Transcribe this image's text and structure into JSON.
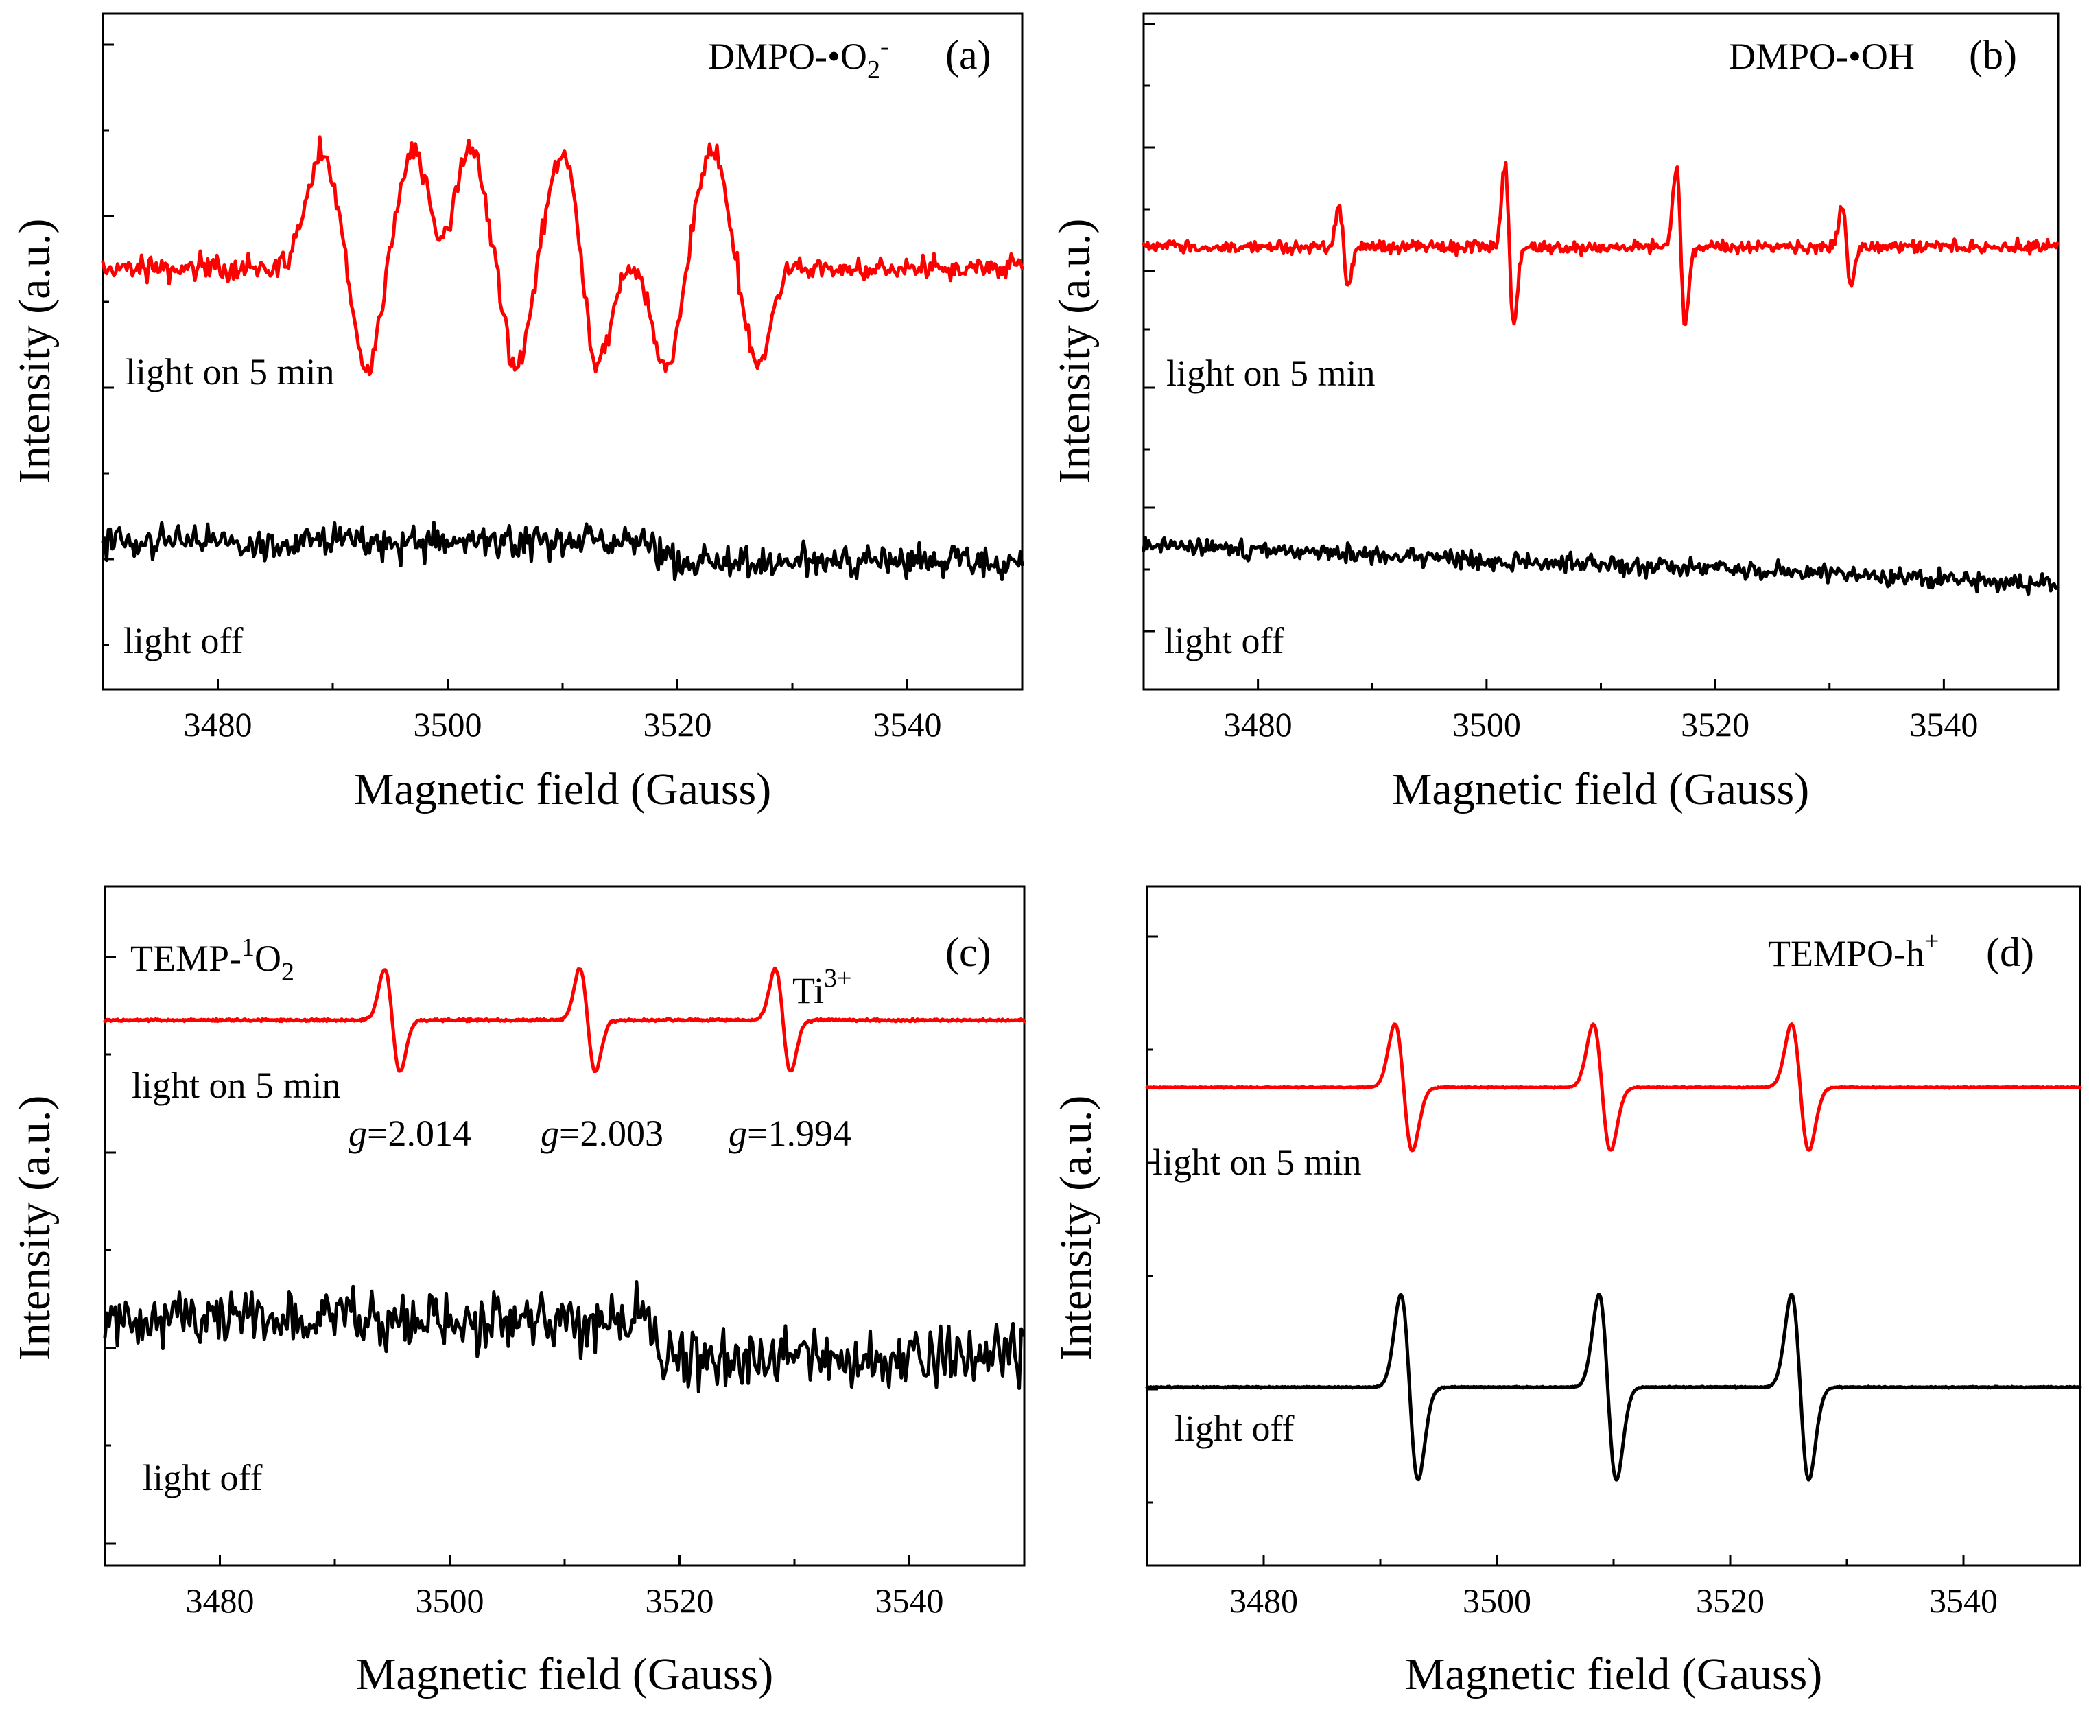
{
  "colors": {
    "light_on": "#ff0000",
    "light_off": "#000000"
  },
  "chart_data": [
    {
      "type": "line",
      "panel": "(a)",
      "species": "DMPO-•O",
      "species_sub": "2",
      "species_sup": "-",
      "xlabel": "Magnetic field (Gauss)",
      "ylabel": "Intensity (a.u.)",
      "xlim": [
        3470,
        3550
      ],
      "xticks": [
        3480,
        3500,
        3520,
        3540
      ],
      "y_tick_labels": "none (arbitrary units)",
      "series": [
        {
          "name": "light on 5 min",
          "color": "#ff0000",
          "signal": "noisy sextet-like hyperfine pattern",
          "peaks_x": [
            3489,
            3497,
            3502,
            3510,
            3523
          ],
          "troughs_x": [
            3493,
            3506,
            3513,
            3519,
            3527
          ]
        },
        {
          "name": "light off",
          "color": "#000000",
          "signal": "noise only"
        }
      ]
    },
    {
      "type": "line",
      "panel": "(b)",
      "species": "DMPO-•OH",
      "xlabel": "Magnetic field (Gauss)",
      "ylabel": "Intensity (a.u.)",
      "xlim": [
        3470,
        3550
      ],
      "xticks": [
        3480,
        3500,
        3520,
        3540
      ],
      "series": [
        {
          "name": "light on 5 min",
          "color": "#ff0000",
          "signal": "1:2:2:1 quartet",
          "lines_center_x": [
            3487.5,
            3502.0,
            3517.0,
            3531.5
          ],
          "relative_amplitude": [
            1,
            2,
            2,
            1
          ]
        },
        {
          "name": "light off",
          "color": "#000000",
          "signal": "noise only"
        }
      ]
    },
    {
      "type": "line",
      "panel": "(c)",
      "species": "TEMP-",
      "species_sup": "1",
      "species_rest": "O",
      "species_sub": "2",
      "annotation": "Ti",
      "annotation_sup": "3+",
      "xlabel": "Magnetic field (Gauss)",
      "ylabel": "Intensity (a.u.)",
      "xlim": [
        3470,
        3550
      ],
      "xticks": [
        3480,
        3500,
        3520,
        3540
      ],
      "g_labels": [
        {
          "g": "g",
          "value": "=2.014",
          "x": 3495
        },
        {
          "g": "g",
          "value": "=2.003",
          "x": 3512
        },
        {
          "g": "g",
          "value": "=1.994",
          "x": 3529
        }
      ],
      "series": [
        {
          "name": "light on 5 min",
          "color": "#ff0000",
          "signal": "1:1:1 triplet",
          "lines_center_x": [
            3495,
            3512,
            3529
          ]
        },
        {
          "name": "light off",
          "color": "#000000",
          "signal": "noise only"
        }
      ]
    },
    {
      "type": "line",
      "panel": "(d)",
      "species": "TEMPO-h",
      "species_sup": "+",
      "xlabel": "Magnetic field (Gauss)",
      "ylabel": "Intensity (a.u.)",
      "xlim": [
        3470,
        3550
      ],
      "xticks": [
        3480,
        3500,
        3520,
        3540
      ],
      "series": [
        {
          "name": "light on 5 min",
          "color": "#ff0000",
          "signal": "1:1:1 triplet (weaker)",
          "lines_center_x": [
            3492,
            3509,
            3526
          ]
        },
        {
          "name": "light off",
          "color": "#000000",
          "signal": "1:1:1 triplet (stronger)",
          "lines_center_x": [
            3492.5,
            3509.5,
            3526
          ]
        }
      ]
    }
  ]
}
